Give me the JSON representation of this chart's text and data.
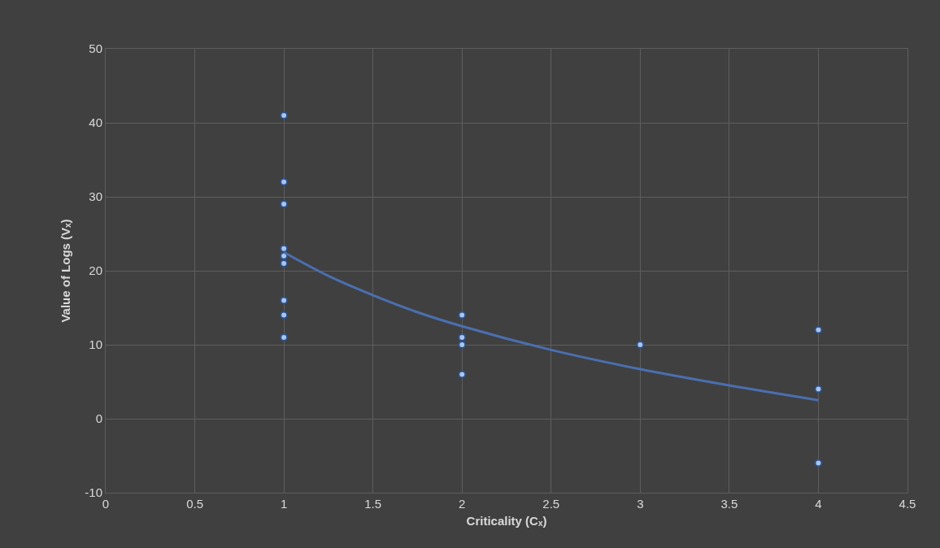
{
  "chart_data": {
    "type": "scatter",
    "xlabel": "Criticality (Cₓ)",
    "ylabel": "Value of Logs (Vₓ)",
    "xlim": [
      0,
      4.5
    ],
    "xticks": [
      0,
      0.5,
      1,
      1.5,
      2,
      2.5,
      3,
      3.5,
      4,
      4.5
    ],
    "ylim": [
      -10,
      50
    ],
    "yticks": [
      -10,
      0,
      10,
      20,
      30,
      40,
      50
    ],
    "grid": true,
    "series": [
      {
        "color": "#a9c4eb",
        "marker": "circle",
        "x": [
          1,
          1,
          1,
          1,
          1,
          1,
          1,
          1,
          1,
          2,
          2,
          2,
          2,
          3,
          4,
          4,
          4
        ],
        "values": [
          41,
          32,
          29,
          23,
          22,
          21,
          16,
          14,
          11,
          14,
          11,
          10,
          6,
          10,
          12,
          4,
          -6
        ]
      },
      {
        "type": "line",
        "color": "#4a6fb0",
        "marker": "none",
        "line_style": "solid",
        "x": [
          1,
          1.25,
          1.5,
          1.75,
          2,
          2.5,
          3,
          3.5,
          4
        ],
        "values": [
          22.5,
          19.3,
          16.7,
          14.4,
          12.5,
          9.3,
          6.7,
          4.5,
          2.5
        ]
      }
    ]
  }
}
